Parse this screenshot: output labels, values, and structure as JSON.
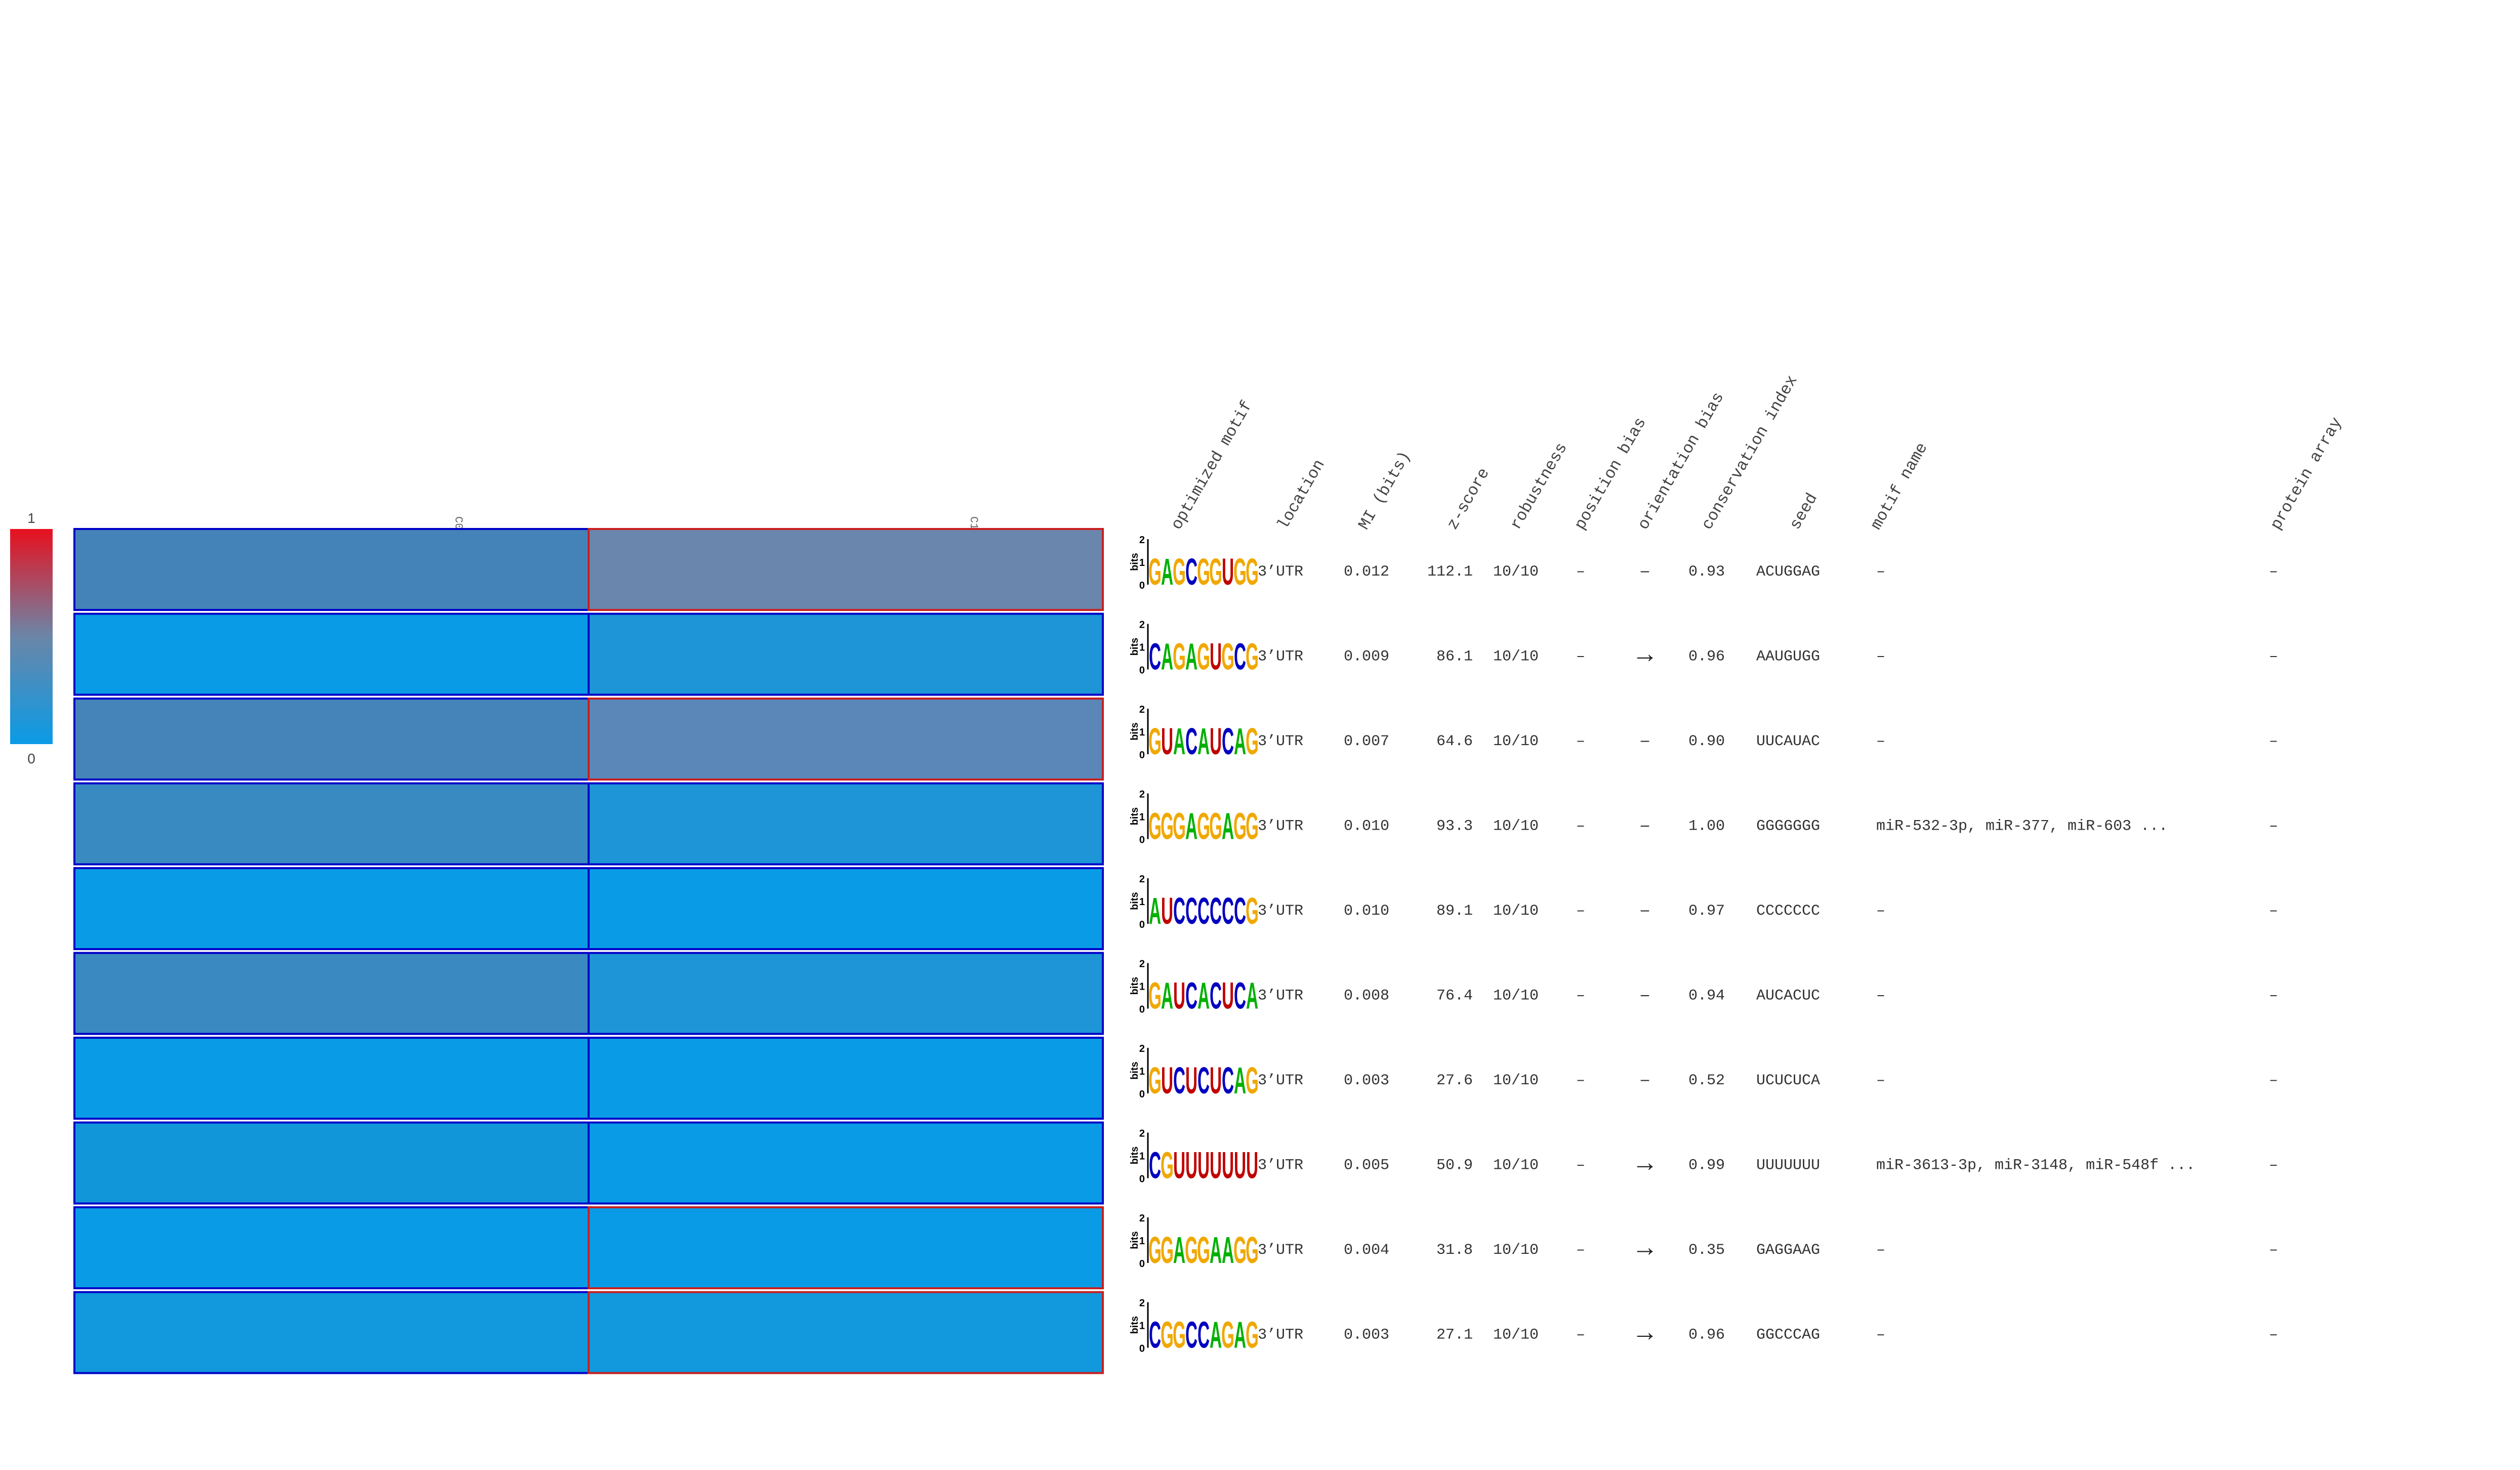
{
  "scale": {
    "max_label": "1",
    "min_label": "0",
    "colors": [
      "#e8101e",
      "#6b86a8",
      "#0a9be6"
    ]
  },
  "clusters": [
    "C0",
    "C1"
  ],
  "columns": [
    "optimized motif",
    "location",
    "MI (bits)",
    "z-score",
    "robustness",
    "position bias",
    "orientation bias",
    "conservation index",
    "seed",
    "motif name",
    "protein array"
  ],
  "logo_axis": {
    "label": "bits",
    "ticks": [
      "2",
      "1",
      "0"
    ]
  },
  "rows": [
    {
      "cells": [
        0.42,
        0.5
      ],
      "cell_colors": [
        "#4483b8",
        "#6b86ac"
      ],
      "border_colors": [
        "#0000c8",
        "#c82020"
      ],
      "logo": [
        "G",
        "A",
        "G",
        "C",
        "G",
        "G",
        "U",
        "G",
        "G"
      ],
      "location": "3’UTR",
      "mi": "0.012",
      "zscore": "112.1",
      "robustness": "10/10",
      "position_bias": "–",
      "orientation_bias": "–",
      "conservation": "0.93",
      "seed": "ACUGGAG",
      "motif_name": "–",
      "protein_array": "–"
    },
    {
      "cells": [
        0.06,
        0.17
      ],
      "cell_colors": [
        "#0a9be6",
        "#1d95d6"
      ],
      "border_colors": [
        "#0000c8",
        "#0000c8"
      ],
      "logo": [
        "C",
        "A",
        "G",
        "A",
        "G",
        "U",
        "G",
        "C",
        "G"
      ],
      "location": "3’UTR",
      "mi": "0.009",
      "zscore": "86.1",
      "robustness": "10/10",
      "position_bias": "–",
      "orientation_bias": "→",
      "conservation": "0.96",
      "seed": "AAUGUGG",
      "motif_name": "–",
      "protein_array": "–"
    },
    {
      "cells": [
        0.42,
        0.45
      ],
      "cell_colors": [
        "#4584b8",
        "#5a87b8"
      ],
      "border_colors": [
        "#0000c8",
        "#c82020"
      ],
      "logo": [
        "G",
        "U",
        "A",
        "C",
        "A",
        "U",
        "C",
        "A",
        "G"
      ],
      "location": "3’UTR",
      "mi": "0.007",
      "zscore": "64.6",
      "robustness": "10/10",
      "position_bias": "–",
      "orientation_bias": "–",
      "conservation": "0.90",
      "seed": "UUCAUAC",
      "motif_name": "–",
      "protein_array": "–"
    },
    {
      "cells": [
        0.33,
        0.16
      ],
      "cell_colors": [
        "#3a8ac2",
        "#1d95d6"
      ],
      "border_colors": [
        "#0000c8",
        "#0000c8"
      ],
      "logo": [
        "G",
        "G",
        "G",
        "A",
        "G",
        "G",
        "A",
        "G",
        "G"
      ],
      "location": "3’UTR",
      "mi": "0.010",
      "zscore": "93.3",
      "robustness": "10/10",
      "position_bias": "–",
      "orientation_bias": "–",
      "conservation": "1.00",
      "seed": "GGGGGGG",
      "motif_name": "miR-532-3p, miR-377, miR-603 ...",
      "protein_array": "–"
    },
    {
      "cells": [
        0.04,
        0.04
      ],
      "cell_colors": [
        "#0a9be6",
        "#0a9be6"
      ],
      "border_colors": [
        "#0000c8",
        "#0000c8"
      ],
      "logo": [
        "A",
        "U",
        "C",
        "C",
        "C",
        "C",
        "C",
        "C",
        "G"
      ],
      "location": "3’UTR",
      "mi": "0.010",
      "zscore": "89.1",
      "robustness": "10/10",
      "position_bias": "–",
      "orientation_bias": "–",
      "conservation": "0.97",
      "seed": "CCCCCCC",
      "motif_name": "–",
      "protein_array": "–"
    },
    {
      "cells": [
        0.35,
        0.16
      ],
      "cell_colors": [
        "#3a89c0",
        "#1d95d6"
      ],
      "border_colors": [
        "#0000c8",
        "#0000c8"
      ],
      "logo": [
        "G",
        "A",
        "U",
        "C",
        "A",
        "C",
        "U",
        "C",
        "A"
      ],
      "location": "3’UTR",
      "mi": "0.008",
      "zscore": "76.4",
      "robustness": "10/10",
      "position_bias": "–",
      "orientation_bias": "–",
      "conservation": "0.94",
      "seed": "AUCACUC",
      "motif_name": "–",
      "protein_array": "–"
    },
    {
      "cells": [
        0.05,
        0.05
      ],
      "cell_colors": [
        "#0a9be6",
        "#0a9be6"
      ],
      "border_colors": [
        "#0000c8",
        "#0000c8"
      ],
      "logo": [
        "G",
        "U",
        "C",
        "U",
        "C",
        "U",
        "C",
        "A",
        "G"
      ],
      "location": "3’UTR",
      "mi": "0.003",
      "zscore": "27.6",
      "robustness": "10/10",
      "position_bias": "–",
      "orientation_bias": "–",
      "conservation": "0.52",
      "seed": "UCUCUCA",
      "motif_name": "–",
      "protein_array": "–"
    },
    {
      "cells": [
        0.12,
        0.05
      ],
      "cell_colors": [
        "#1296da",
        "#0a9be6"
      ],
      "border_colors": [
        "#0000c8",
        "#0000c8"
      ],
      "logo": [
        "C",
        "G",
        "U",
        "U",
        "U",
        "U",
        "U",
        "U",
        "U"
      ],
      "location": "3’UTR",
      "mi": "0.005",
      "zscore": "50.9",
      "robustness": "10/10",
      "position_bias": "–",
      "orientation_bias": "→",
      "conservation": "0.99",
      "seed": "UUUUUUU",
      "motif_name": "miR-3613-3p, miR-3148, miR-548f ...",
      "protein_array": "–"
    },
    {
      "cells": [
        0.05,
        0.05
      ],
      "cell_colors": [
        "#0a9be6",
        "#0a9be6"
      ],
      "border_colors": [
        "#0000c8",
        "#c82020"
      ],
      "logo": [
        "G",
        "G",
        "A",
        "G",
        "G",
        "A",
        "A",
        "G",
        "G"
      ],
      "location": "3’UTR",
      "mi": "0.004",
      "zscore": "31.8",
      "robustness": "10/10",
      "position_bias": "–",
      "orientation_bias": "→",
      "conservation": "0.35",
      "seed": "GAGGAAG",
      "motif_name": "–",
      "protein_array": "–"
    },
    {
      "cells": [
        0.11,
        0.11
      ],
      "cell_colors": [
        "#1298dc",
        "#1298dc"
      ],
      "border_colors": [
        "#0000c8",
        "#c82020"
      ],
      "logo": [
        "C",
        "G",
        "G",
        "C",
        "C",
        "A",
        "G",
        "A",
        "G"
      ],
      "location": "3’UTR",
      "mi": "0.003",
      "zscore": "27.1",
      "robustness": "10/10",
      "position_bias": "–",
      "orientation_bias": "→",
      "conservation": "0.96",
      "seed": "GGCCCAG",
      "motif_name": "–",
      "protein_array": "–"
    }
  ]
}
